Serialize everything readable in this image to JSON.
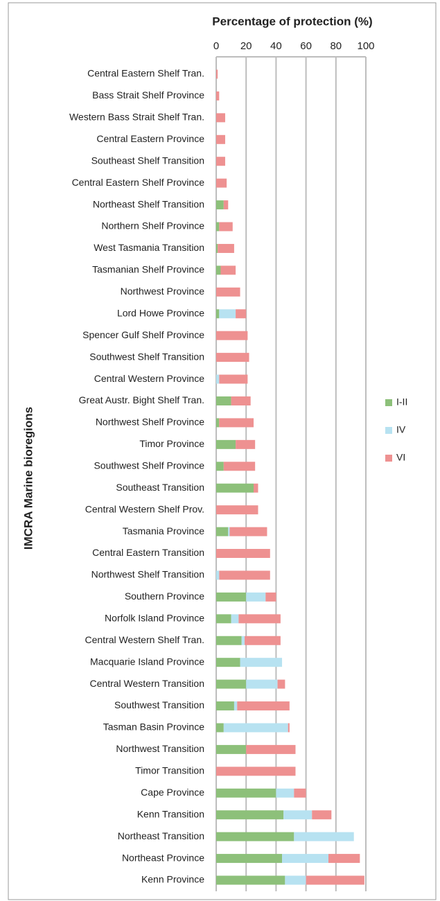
{
  "chart_data": {
    "type": "bar",
    "orientation": "horizontal",
    "stacked": true,
    "x_label": "Percentage of protection (%)",
    "y_label": "IMCRA Marine bioregions",
    "categories": [
      "Central Eastern Shelf Tran.",
      "Bass Strait Shelf Province",
      "Western Bass Strait Shelf Tran.",
      "Central Eastern Province",
      "Southeast Shelf Transition",
      "Central Eastern Shelf Province",
      "Northeast Shelf Transition",
      "Northern Shelf Province",
      "West Tasmania Transition",
      "Tasmanian Shelf Province",
      "Northwest Province",
      "Lord Howe Province",
      "Spencer Gulf Shelf Province",
      "Southwest Shelf Transition",
      "Central Western Province",
      "Great Austr. Bight Shelf Tran.",
      "Northwest Shelf Province",
      "Timor Province",
      "Southwest Shelf Province",
      "Southeast Transition",
      "Central Western Shelf Prov.",
      "Tasmania Province",
      "Central Eastern Transition",
      "Northwest Shelf Transition",
      "Southern Province",
      "Norfolk Island Province",
      "Central Western Shelf Tran.",
      "Macquarie Island Province",
      "Central Western Transition",
      "Southwest Transition",
      "Tasman Basin Province",
      "Northwest Transition",
      "Timor Transition",
      "Cape Province",
      "Kenn Transition",
      "Northeast Transition",
      "Northeast Province",
      "Kenn Province"
    ],
    "series": [
      {
        "name": "I-II",
        "color": "#8dc07a",
        "values": [
          0,
          0,
          0,
          0,
          0,
          0,
          5,
          2,
          1,
          3,
          0,
          2,
          0,
          0,
          0,
          10,
          2,
          13,
          5,
          25,
          0,
          8,
          0,
          0,
          20,
          10,
          17,
          16,
          20,
          12,
          5,
          20,
          0,
          40,
          45,
          52,
          44,
          46
        ]
      },
      {
        "name": "IV",
        "color": "#b7e2f1",
        "values": [
          0,
          0,
          0,
          0,
          0,
          0,
          0,
          0,
          0,
          0,
          0,
          11,
          0,
          0,
          2,
          0,
          0,
          0,
          0,
          0,
          0,
          1,
          0,
          2,
          13,
          5,
          2,
          28,
          21,
          2,
          43,
          0,
          0,
          12,
          19,
          40,
          31,
          14
        ]
      },
      {
        "name": "VI",
        "color": "#ee9191",
        "values": [
          1,
          2,
          6,
          6,
          6,
          7,
          3,
          9,
          11,
          10,
          16,
          7,
          21,
          22,
          19,
          13,
          23,
          13,
          21,
          3,
          28,
          25,
          36,
          34,
          7,
          28,
          24,
          0,
          5,
          35,
          1,
          33,
          53,
          8,
          13,
          0,
          21,
          39
        ]
      }
    ],
    "xlim": [
      0,
      100
    ],
    "xticks": [
      0,
      20,
      40,
      60,
      80,
      100
    ],
    "grid": true,
    "legend": "right"
  }
}
